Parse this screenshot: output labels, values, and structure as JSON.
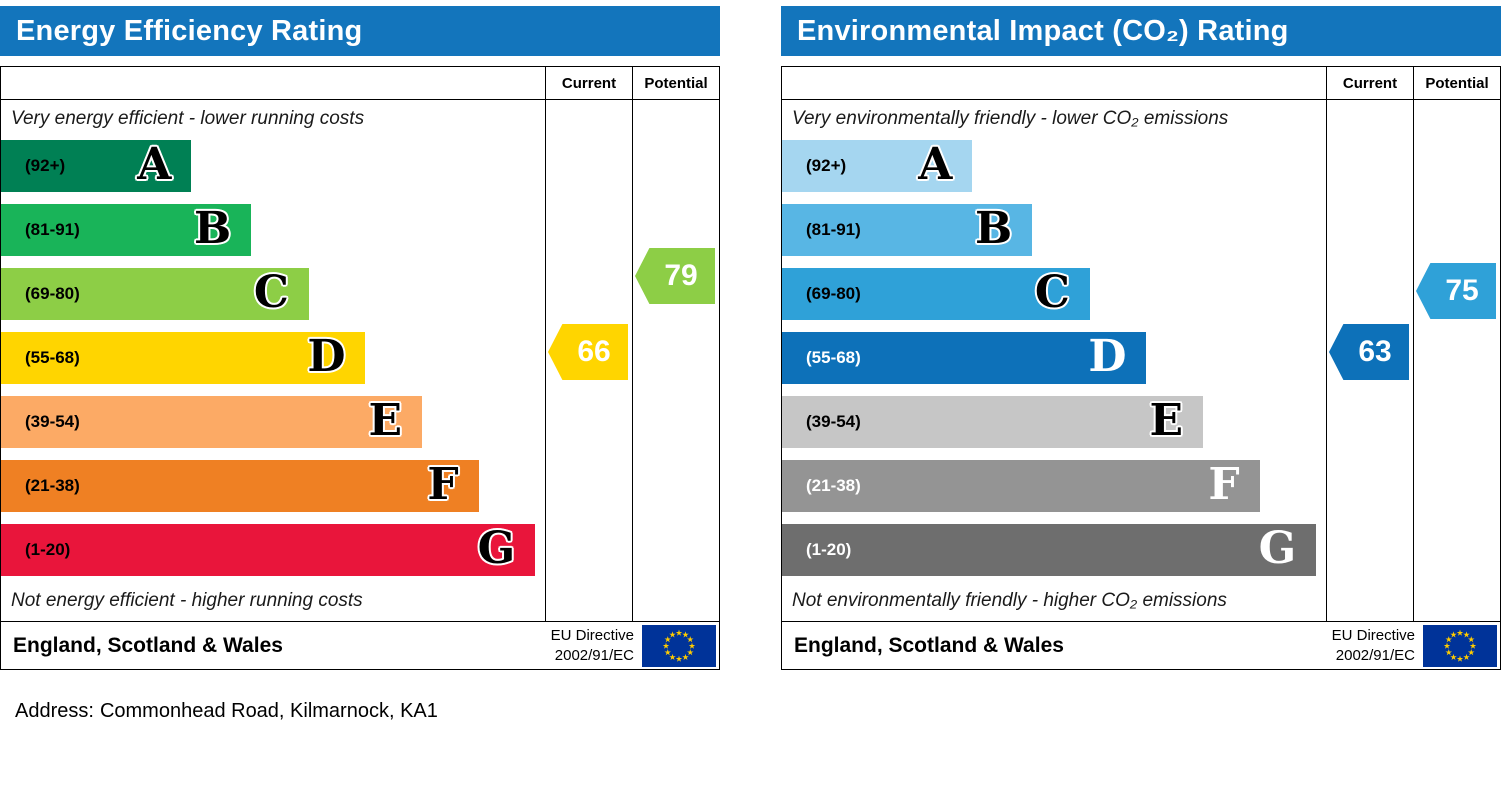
{
  "theme": {
    "header_color": "#1375bc",
    "eu_flag_background": "#003399",
    "eu_flag_stars": "#ffcc00"
  },
  "address": {
    "label": "Address:",
    "value": "Commonhead Road, Kilmarnock, KA1"
  },
  "chart_data": [
    {
      "type": "bar",
      "orientation": "horizontal",
      "title": "Energy Efficiency Rating",
      "columns": [
        "Current",
        "Potential"
      ],
      "top_caption": "Very energy efficient - lower running costs",
      "bottom_caption": "Not energy efficient - higher running costs",
      "categories": [
        "A (92+)",
        "B (81-91)",
        "C (69-80)",
        "D (55-68)",
        "E (39-54)",
        "F (21-38)",
        "G (1-20)"
      ],
      "bands": [
        {
          "letter": "A",
          "range": "(92+)",
          "color": "#008054",
          "width_pct": 35,
          "fg": "dark"
        },
        {
          "letter": "B",
          "range": "(81-91)",
          "color": "#19b459",
          "width_pct": 46,
          "fg": "dark"
        },
        {
          "letter": "C",
          "range": "(69-80)",
          "color": "#8dce46",
          "width_pct": 56.6,
          "fg": "dark"
        },
        {
          "letter": "D",
          "range": "(55-68)",
          "color": "#ffd500",
          "width_pct": 67,
          "fg": "dark"
        },
        {
          "letter": "E",
          "range": "(39-54)",
          "color": "#fcaa65",
          "width_pct": 77.4,
          "fg": "dark"
        },
        {
          "letter": "F",
          "range": "(21-38)",
          "color": "#ef8023",
          "width_pct": 87.8,
          "fg": "dark"
        },
        {
          "letter": "G",
          "range": "(1-20)",
          "color": "#e9153b",
          "width_pct": 98.2,
          "fg": "dark"
        }
      ],
      "current": {
        "value": 66,
        "band": "D",
        "band_index": 3,
        "color": "#ffd500",
        "offset": -6
      },
      "potential": {
        "value": 79,
        "band": "C",
        "band_index": 2,
        "color": "#8dce46",
        "offset": -18
      },
      "footer_region": "England, Scotland & Wales",
      "directive_line1": "EU Directive",
      "directive_line2": "2002/91/EC"
    },
    {
      "type": "bar",
      "orientation": "horizontal",
      "title": "Environmental Impact (CO₂) Rating",
      "columns": [
        "Current",
        "Potential"
      ],
      "top_caption": "Very environmentally friendly - lower CO₂ emissions",
      "bottom_caption": "Not environmentally friendly - higher CO₂ emissions",
      "categories": [
        "A (92+)",
        "B (81-91)",
        "C (69-80)",
        "D (55-68)",
        "E (39-54)",
        "F (21-38)",
        "G (1-20)"
      ],
      "bands": [
        {
          "letter": "A",
          "range": "(92+)",
          "color": "#a5d6f0",
          "width_pct": 35,
          "fg": "dark"
        },
        {
          "letter": "B",
          "range": "(81-91)",
          "color": "#58b6e4",
          "width_pct": 46,
          "fg": "dark"
        },
        {
          "letter": "C",
          "range": "(69-80)",
          "color": "#2fa1d8",
          "width_pct": 56.6,
          "fg": "dark"
        },
        {
          "letter": "D",
          "range": "(55-68)",
          "color": "#0d71b9",
          "width_pct": 67,
          "fg": "light"
        },
        {
          "letter": "E",
          "range": "(39-54)",
          "color": "#c6c6c6",
          "width_pct": 77.4,
          "fg": "dark"
        },
        {
          "letter": "F",
          "range": "(21-38)",
          "color": "#949494",
          "width_pct": 87.8,
          "fg": "light"
        },
        {
          "letter": "G",
          "range": "(1-20)",
          "color": "#6e6e6e",
          "width_pct": 98.2,
          "fg": "light"
        }
      ],
      "current": {
        "value": 63,
        "band": "D",
        "band_index": 3,
        "color": "#0d71b9",
        "offset": -6
      },
      "potential": {
        "value": 75,
        "band": "C",
        "band_index": 2,
        "color": "#2fa1d8",
        "offset": -3
      },
      "footer_region": "England, Scotland & Wales",
      "directive_line1": "EU Directive",
      "directive_line2": "2002/91/EC"
    }
  ]
}
